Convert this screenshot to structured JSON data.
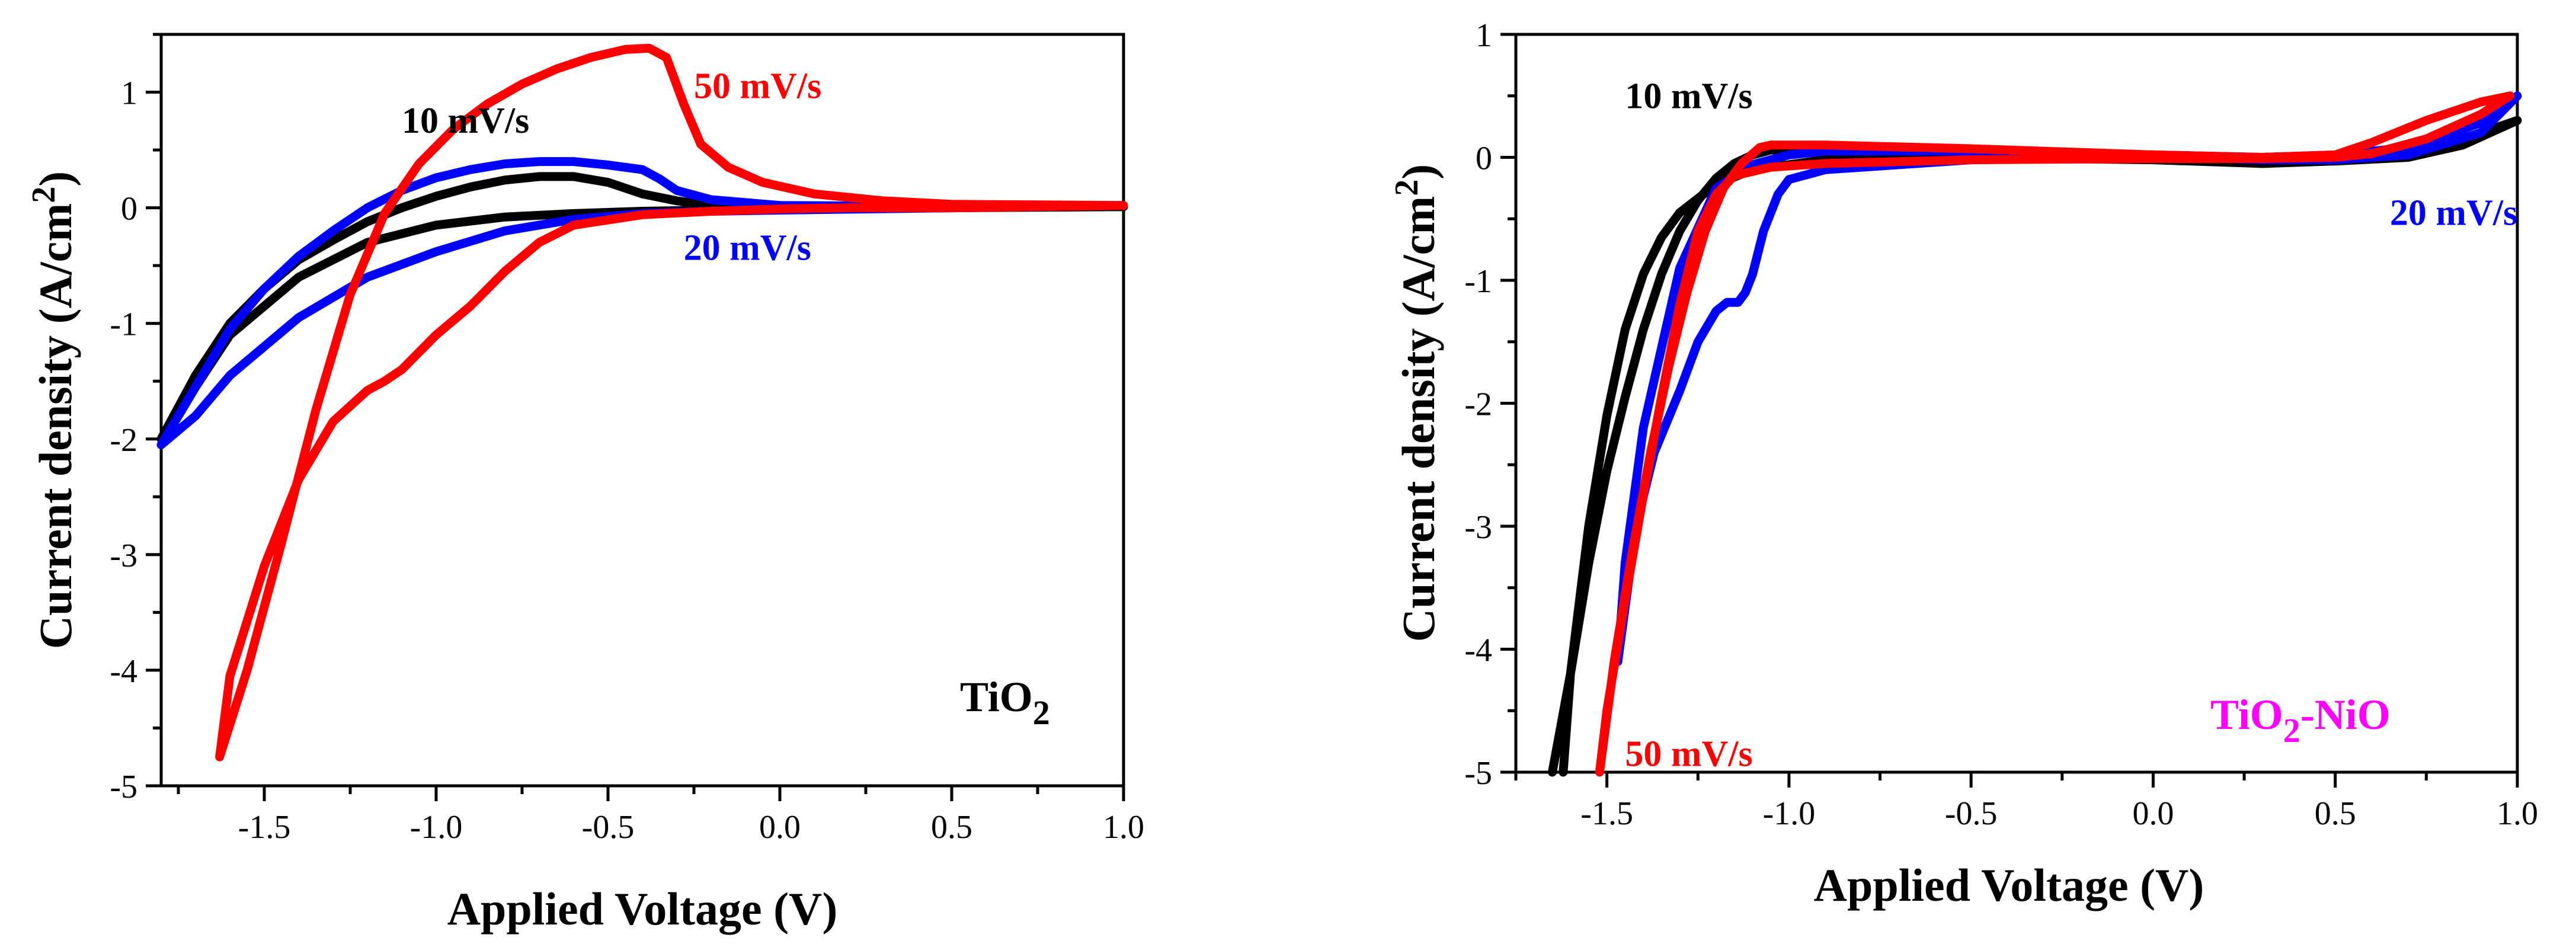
{
  "chart_data": [
    {
      "type": "line",
      "panel_label": {
        "base": "TiO",
        "sub": "2",
        "rest": ""
      },
      "panel_label_color": "#000000",
      "xlabel": "Applied Voltage (V)",
      "ylabel": {
        "base": "Current density  (A/cm",
        "sup": "2",
        "rest": ")"
      },
      "xlim": [
        -1.8,
        1.0
      ],
      "ylim": [
        -5,
        1.5
      ],
      "xticks": [
        -1.5,
        -1.0,
        -0.5,
        0.0,
        0.5,
        1.0
      ],
      "xtick_labels": [
        "-1.5",
        "-1.0",
        "-0.5",
        "0.0",
        "0.5",
        "1.0"
      ],
      "yticks": [
        -5,
        -4,
        -3,
        -2,
        -1,
        0,
        1
      ],
      "ytick_labels": [
        "-5",
        "-4",
        "-3",
        "-2",
        "-1",
        "0",
        "1"
      ],
      "series": [
        {
          "name": "10 mV/s",
          "color": "#000000",
          "x": [
            -1.8,
            -1.7,
            -1.6,
            -1.5,
            -1.4,
            -1.3,
            -1.2,
            -1.1,
            -1.0,
            -0.9,
            -0.8,
            -0.7,
            -0.6,
            -0.5,
            -0.4,
            -0.3,
            -0.2,
            0.0,
            0.5,
            1.0,
            0.5,
            0.0,
            -0.2,
            -0.4,
            -0.6,
            -0.8,
            -1.0,
            -1.2,
            -1.4,
            -1.6,
            -1.7,
            -1.8
          ],
          "y": [
            -2.0,
            -1.45,
            -1.0,
            -0.7,
            -0.45,
            -0.28,
            -0.12,
            0.0,
            0.1,
            0.18,
            0.24,
            0.27,
            0.27,
            0.22,
            0.12,
            0.06,
            0.02,
            0.0,
            0.0,
            0.01,
            0.0,
            -0.01,
            -0.02,
            -0.03,
            -0.05,
            -0.08,
            -0.15,
            -0.3,
            -0.6,
            -1.1,
            -1.55,
            -2.0
          ]
        },
        {
          "name": "20 mV/s",
          "color": "#0000ff",
          "x": [
            -1.8,
            -1.7,
            -1.6,
            -1.5,
            -1.4,
            -1.3,
            -1.2,
            -1.1,
            -1.0,
            -0.9,
            -0.8,
            -0.7,
            -0.6,
            -0.5,
            -0.4,
            -0.35,
            -0.3,
            -0.2,
            0.0,
            0.5,
            1.0,
            0.5,
            0.0,
            -0.2,
            -0.4,
            -0.6,
            -0.8,
            -1.0,
            -1.2,
            -1.4,
            -1.6,
            -1.7,
            -1.8
          ],
          "y": [
            -2.05,
            -1.55,
            -1.05,
            -0.7,
            -0.42,
            -0.2,
            0.0,
            0.15,
            0.26,
            0.33,
            0.38,
            0.4,
            0.4,
            0.37,
            0.33,
            0.25,
            0.15,
            0.07,
            0.02,
            0.01,
            0.02,
            0.0,
            -0.02,
            -0.03,
            -0.05,
            -0.1,
            -0.2,
            -0.38,
            -0.6,
            -0.95,
            -1.45,
            -1.8,
            -2.05
          ]
        },
        {
          "name": "50 mV/s",
          "color": "#ff0000",
          "x": [
            -1.63,
            -1.55,
            -1.45,
            -1.35,
            -1.25,
            -1.15,
            -1.05,
            -0.95,
            -0.85,
            -0.75,
            -0.65,
            -0.55,
            -0.45,
            -0.38,
            -0.33,
            -0.28,
            -0.23,
            -0.15,
            -0.05,
            0.1,
            0.3,
            0.5,
            1.0,
            0.5,
            0.2,
            0.0,
            -0.2,
            -0.4,
            -0.6,
            -0.7,
            -0.8,
            -0.9,
            -1.0,
            -1.05,
            -1.1,
            -1.15,
            -1.2,
            -1.3,
            -1.4,
            -1.5,
            -1.6,
            -1.63
          ],
          "y": [
            -4.75,
            -4.0,
            -2.9,
            -1.75,
            -0.75,
            -0.05,
            0.38,
            0.68,
            0.9,
            1.07,
            1.2,
            1.3,
            1.37,
            1.38,
            1.3,
            0.9,
            0.55,
            0.35,
            0.22,
            0.12,
            0.06,
            0.03,
            0.02,
            0.0,
            0.0,
            -0.01,
            -0.03,
            -0.06,
            -0.15,
            -0.3,
            -0.55,
            -0.85,
            -1.1,
            -1.25,
            -1.4,
            -1.5,
            -1.58,
            -1.85,
            -2.35,
            -3.1,
            -4.05,
            -4.75
          ]
        }
      ]
    },
    {
      "type": "line",
      "panel_label": {
        "base": "TiO",
        "sub": "2",
        "rest": "-NiO"
      },
      "panel_label_color": "#ff00ff",
      "xlabel": "Applied Voltage (V)",
      "ylabel": {
        "base": "Current density  (A/cm",
        "sup": "2",
        "rest": ")"
      },
      "xlim": [
        -1.75,
        1.0
      ],
      "ylim": [
        -5,
        1
      ],
      "xticks": [
        -1.5,
        -1.0,
        -0.5,
        0.0,
        0.5,
        1.0
      ],
      "xtick_labels": [
        "-1.5",
        "-1.0",
        "-0.5",
        "0.0",
        "0.5",
        "1.0"
      ],
      "yticks": [
        -5,
        -4,
        -3,
        -2,
        -1,
        0,
        1
      ],
      "ytick_labels": [
        "-5",
        "-4",
        "-3",
        "-2",
        "-1",
        "0",
        "1"
      ],
      "series": [
        {
          "name": "10 mV/s",
          "color": "#000000",
          "x": [
            -1.65,
            -1.6,
            -1.55,
            -1.5,
            -1.45,
            -1.4,
            -1.35,
            -1.3,
            -1.25,
            -1.2,
            -1.15,
            -1.1,
            -1.05,
            -0.9,
            -0.5,
            0.0,
            0.3,
            0.5,
            0.7,
            0.85,
            1.0,
            0.85,
            0.7,
            0.5,
            0.3,
            0.0,
            -0.5,
            -0.9,
            -1.1,
            -1.2,
            -1.3,
            -1.35,
            -1.4,
            -1.45,
            -1.5,
            -1.55,
            -1.6,
            -1.62
          ],
          "y": [
            -5.0,
            -4.2,
            -3.3,
            -2.55,
            -1.95,
            -1.4,
            -0.95,
            -0.6,
            -0.35,
            -0.17,
            -0.05,
            0.02,
            0.06,
            0.06,
            0.05,
            0.02,
            -0.02,
            0.0,
            0.05,
            0.15,
            0.3,
            0.1,
            0.0,
            -0.03,
            -0.05,
            -0.02,
            0.0,
            -0.02,
            -0.1,
            -0.22,
            -0.45,
            -0.65,
            -0.95,
            -1.4,
            -2.1,
            -3.0,
            -4.2,
            -5.0
          ]
        },
        {
          "name": "20 mV/s",
          "color": "#0000ff",
          "x": [
            -1.47,
            -1.42,
            -1.37,
            -1.3,
            -1.25,
            -1.2,
            -1.17,
            -1.14,
            -1.12,
            -1.1,
            -1.07,
            -1.03,
            -1.0,
            -0.9,
            -0.5,
            0.0,
            0.3,
            0.5,
            0.7,
            0.9,
            1.0,
            0.9,
            0.7,
            0.5,
            0.3,
            0.0,
            -0.5,
            -0.9,
            -1.0,
            -1.1,
            -1.2,
            -1.3,
            -1.4,
            -1.45,
            -1.47
          ],
          "y": [
            -4.1,
            -3.0,
            -2.4,
            -1.9,
            -1.5,
            -1.25,
            -1.18,
            -1.18,
            -1.1,
            -0.95,
            -0.6,
            -0.3,
            -0.18,
            -0.1,
            -0.02,
            0.02,
            0.0,
            0.02,
            0.08,
            0.28,
            0.5,
            0.2,
            0.02,
            -0.02,
            -0.02,
            0.01,
            0.05,
            0.05,
            0.02,
            -0.06,
            -0.25,
            -0.9,
            -2.2,
            -3.3,
            -4.1
          ]
        },
        {
          "name": "50 mV/s",
          "color": "#ff0000",
          "x": [
            -1.52,
            -1.48,
            -1.43,
            -1.38,
            -1.33,
            -1.28,
            -1.23,
            -1.18,
            -1.13,
            -1.08,
            -1.05,
            -0.9,
            -0.5,
            0.0,
            0.3,
            0.5,
            0.6,
            0.75,
            0.9,
            0.98,
            0.9,
            0.75,
            0.6,
            0.5,
            0.3,
            0.0,
            -0.5,
            -0.9,
            -1.05,
            -1.15,
            -1.2,
            -1.25,
            -1.3,
            -1.35,
            -1.4,
            -1.45,
            -1.5,
            -1.52
          ],
          "y": [
            -5.0,
            -4.1,
            -3.2,
            -2.4,
            -1.7,
            -1.1,
            -0.6,
            -0.25,
            -0.05,
            0.08,
            0.1,
            0.1,
            0.07,
            0.02,
            0.0,
            0.02,
            0.12,
            0.3,
            0.45,
            0.5,
            0.35,
            0.15,
            0.03,
            0.0,
            -0.01,
            -0.01,
            -0.02,
            -0.05,
            -0.08,
            -0.15,
            -0.3,
            -0.6,
            -1.2,
            -1.95,
            -2.75,
            -3.6,
            -4.5,
            -5.0
          ]
        }
      ]
    }
  ],
  "annotations": [
    [
      {
        "text": "10 mV/s",
        "color": "#000000",
        "x": -1.1,
        "y": 0.65
      },
      {
        "text": "50 mV/s",
        "color": "#ff0000",
        "x": -0.25,
        "y": 0.95
      },
      {
        "text": "20 mV/s",
        "color": "#0000ff",
        "x": -0.28,
        "y": -0.45
      }
    ],
    [
      {
        "text": "10 mV/s",
        "color": "#000000",
        "x": -1.45,
        "y": 0.4
      },
      {
        "text": "20 mV/s",
        "color": "#0000ff",
        "x": 0.65,
        "y": -0.55
      },
      {
        "text": "50 mV/s",
        "color": "#ff0000",
        "x": -1.45,
        "y": -4.95
      }
    ]
  ]
}
